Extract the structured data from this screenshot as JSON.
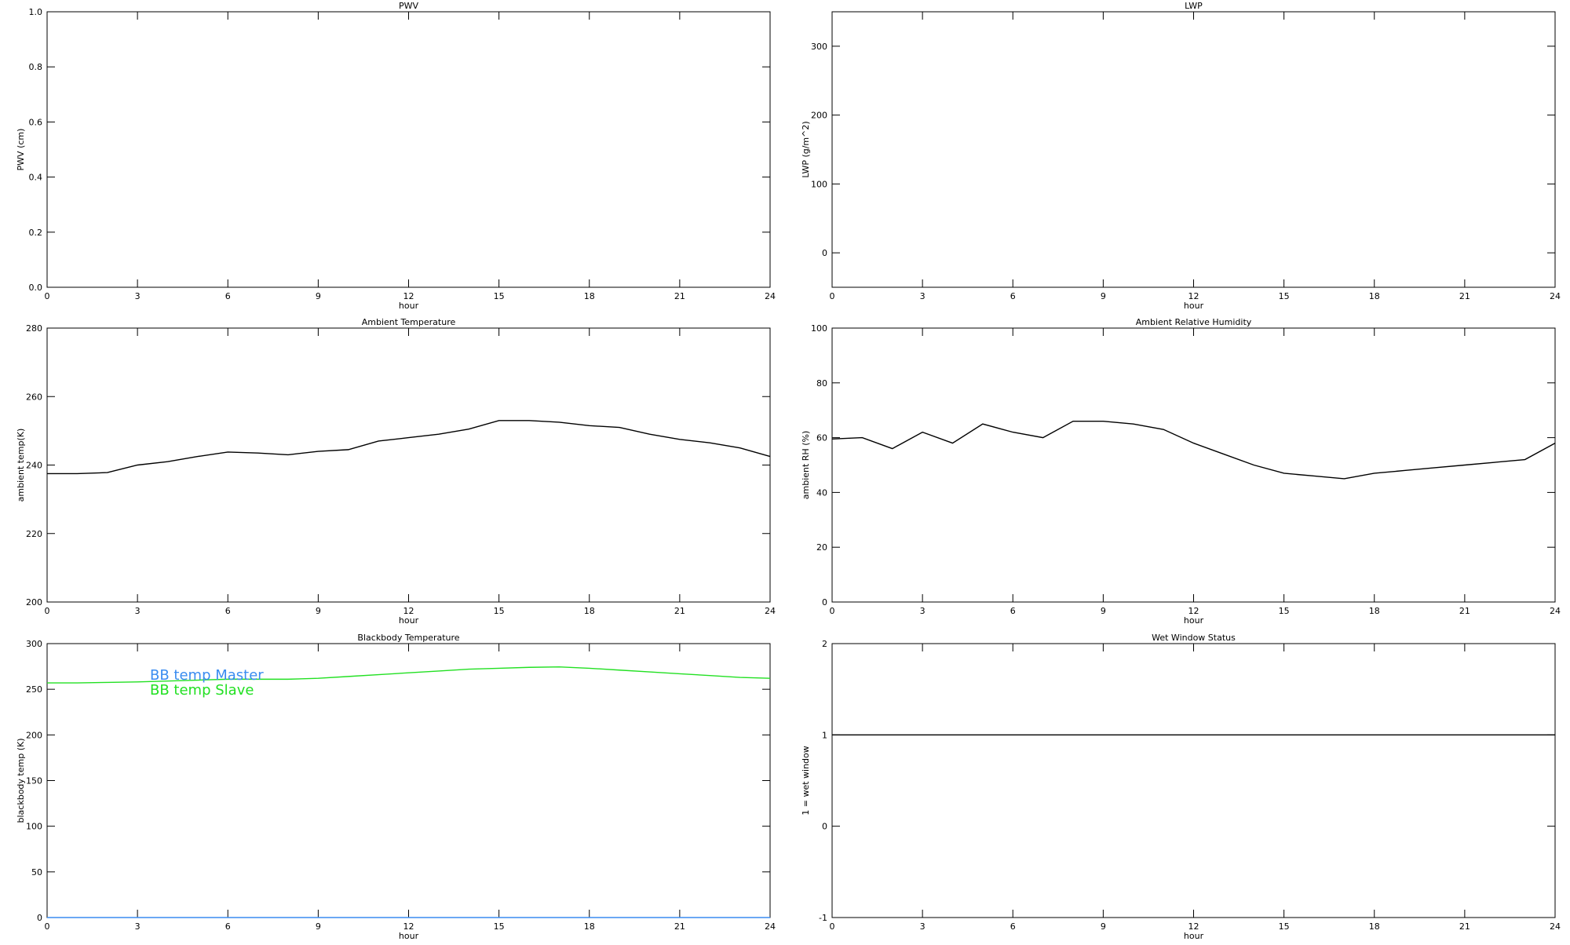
{
  "chart_data": [
    {
      "type": "line",
      "title": "PWV",
      "xlabel": "hour",
      "ylabel": "PWV (cm)",
      "xlim": [
        0,
        24
      ],
      "xticks": [
        0,
        3,
        6,
        9,
        12,
        15,
        18,
        21,
        24
      ],
      "ylim": [
        0,
        1
      ],
      "yticks": [
        {
          "value": 0,
          "label": "0.0"
        },
        0.2,
        0.4,
        0.6,
        0.8,
        {
          "value": 1,
          "label": "1.0"
        }
      ]
    },
    {
      "type": "line",
      "title": "LWP",
      "xlabel": "hour",
      "ylabel": "LWP (g/m^2)",
      "xlim": [
        0,
        24
      ],
      "xticks": [
        0,
        3,
        6,
        9,
        12,
        15,
        18,
        21,
        24
      ],
      "ylim": [
        -50,
        350
      ],
      "yticks": [
        0,
        100,
        200,
        300
      ]
    },
    {
      "type": "line",
      "title": "Ambient Temperature",
      "xlabel": "hour",
      "ylabel": "ambient temp(K)",
      "xlim": [
        0,
        24
      ],
      "xticks": [
        0,
        3,
        6,
        9,
        12,
        15,
        18,
        21,
        24
      ],
      "ylim": [
        200,
        280
      ],
      "yticks": [
        200,
        220,
        240,
        260,
        280
      ],
      "color": "#000000",
      "x": [
        0,
        1,
        2,
        3,
        4,
        5,
        6,
        7,
        8,
        9,
        10,
        11,
        12,
        13,
        14,
        15,
        16,
        17,
        18,
        19,
        20,
        21,
        22,
        23,
        24
      ],
      "values": [
        237.5,
        237.5,
        237.8,
        240,
        241,
        242.5,
        243.8,
        243.5,
        243,
        244,
        244.5,
        247,
        248,
        249,
        250.5,
        253,
        253,
        252.5,
        251.5,
        251,
        249,
        247.5,
        246.5,
        245,
        242.5
      ]
    },
    {
      "type": "line",
      "title": "Ambient Relative Humidity",
      "xlabel": "hour",
      "ylabel": "ambient RH (%)",
      "xlim": [
        0,
        24
      ],
      "xticks": [
        0,
        3,
        6,
        9,
        12,
        15,
        18,
        21,
        24
      ],
      "ylim": [
        0,
        100
      ],
      "yticks": [
        0,
        20,
        40,
        60,
        80,
        100
      ],
      "color": "#000000",
      "x": [
        0,
        1,
        2,
        3,
        4,
        5,
        6,
        7,
        8,
        9,
        10,
        11,
        12,
        13,
        14,
        15,
        16,
        17,
        18,
        19,
        20,
        21,
        22,
        23,
        24
      ],
      "values": [
        59.5,
        60,
        56,
        62,
        58,
        65,
        62,
        60,
        66,
        66,
        65,
        63,
        58,
        54,
        50,
        47,
        46,
        45,
        47,
        48,
        49,
        50,
        51,
        52,
        58
      ]
    },
    {
      "type": "line",
      "title": "Blackbody Temperature",
      "xlabel": "hour",
      "ylabel": "blackbody temp (K)",
      "xlim": [
        0,
        24
      ],
      "xticks": [
        0,
        3,
        6,
        9,
        12,
        15,
        18,
        21,
        24
      ],
      "ylim": [
        0,
        300
      ],
      "yticks": [
        0,
        50,
        100,
        150,
        200,
        250,
        300
      ],
      "x": [
        0,
        1,
        2,
        3,
        4,
        5,
        6,
        7,
        8,
        9,
        10,
        11,
        12,
        13,
        14,
        15,
        16,
        17,
        18,
        19,
        20,
        21,
        22,
        23,
        24
      ],
      "series": [
        {
          "name": "BB temp Master",
          "color": "#3a8cf0",
          "values": [
            0,
            0,
            0,
            0,
            0,
            0,
            0,
            0,
            0,
            0,
            0,
            0,
            0,
            0,
            0,
            0,
            0,
            0,
            0,
            0,
            0,
            0,
            0,
            0,
            0
          ]
        },
        {
          "name": "BB temp Slave",
          "color": "#22e022",
          "values": [
            257,
            257,
            257.5,
            258,
            259,
            260,
            261,
            261,
            261,
            262,
            264,
            266,
            268,
            270,
            272,
            273,
            274,
            274.5,
            273,
            271,
            269,
            267,
            265,
            263,
            262
          ]
        }
      ]
    },
    {
      "type": "line",
      "title": "Wet Window Status",
      "xlabel": "hour",
      "ylabel": "1 = wet window",
      "xlim": [
        0,
        24
      ],
      "xticks": [
        0,
        3,
        6,
        9,
        12,
        15,
        18,
        21,
        24
      ],
      "ylim": [
        -1,
        2
      ],
      "yticks": [
        -1,
        0,
        1,
        2
      ],
      "color": "#000000",
      "x": [
        0,
        24
      ],
      "values": [
        1,
        1
      ]
    }
  ]
}
